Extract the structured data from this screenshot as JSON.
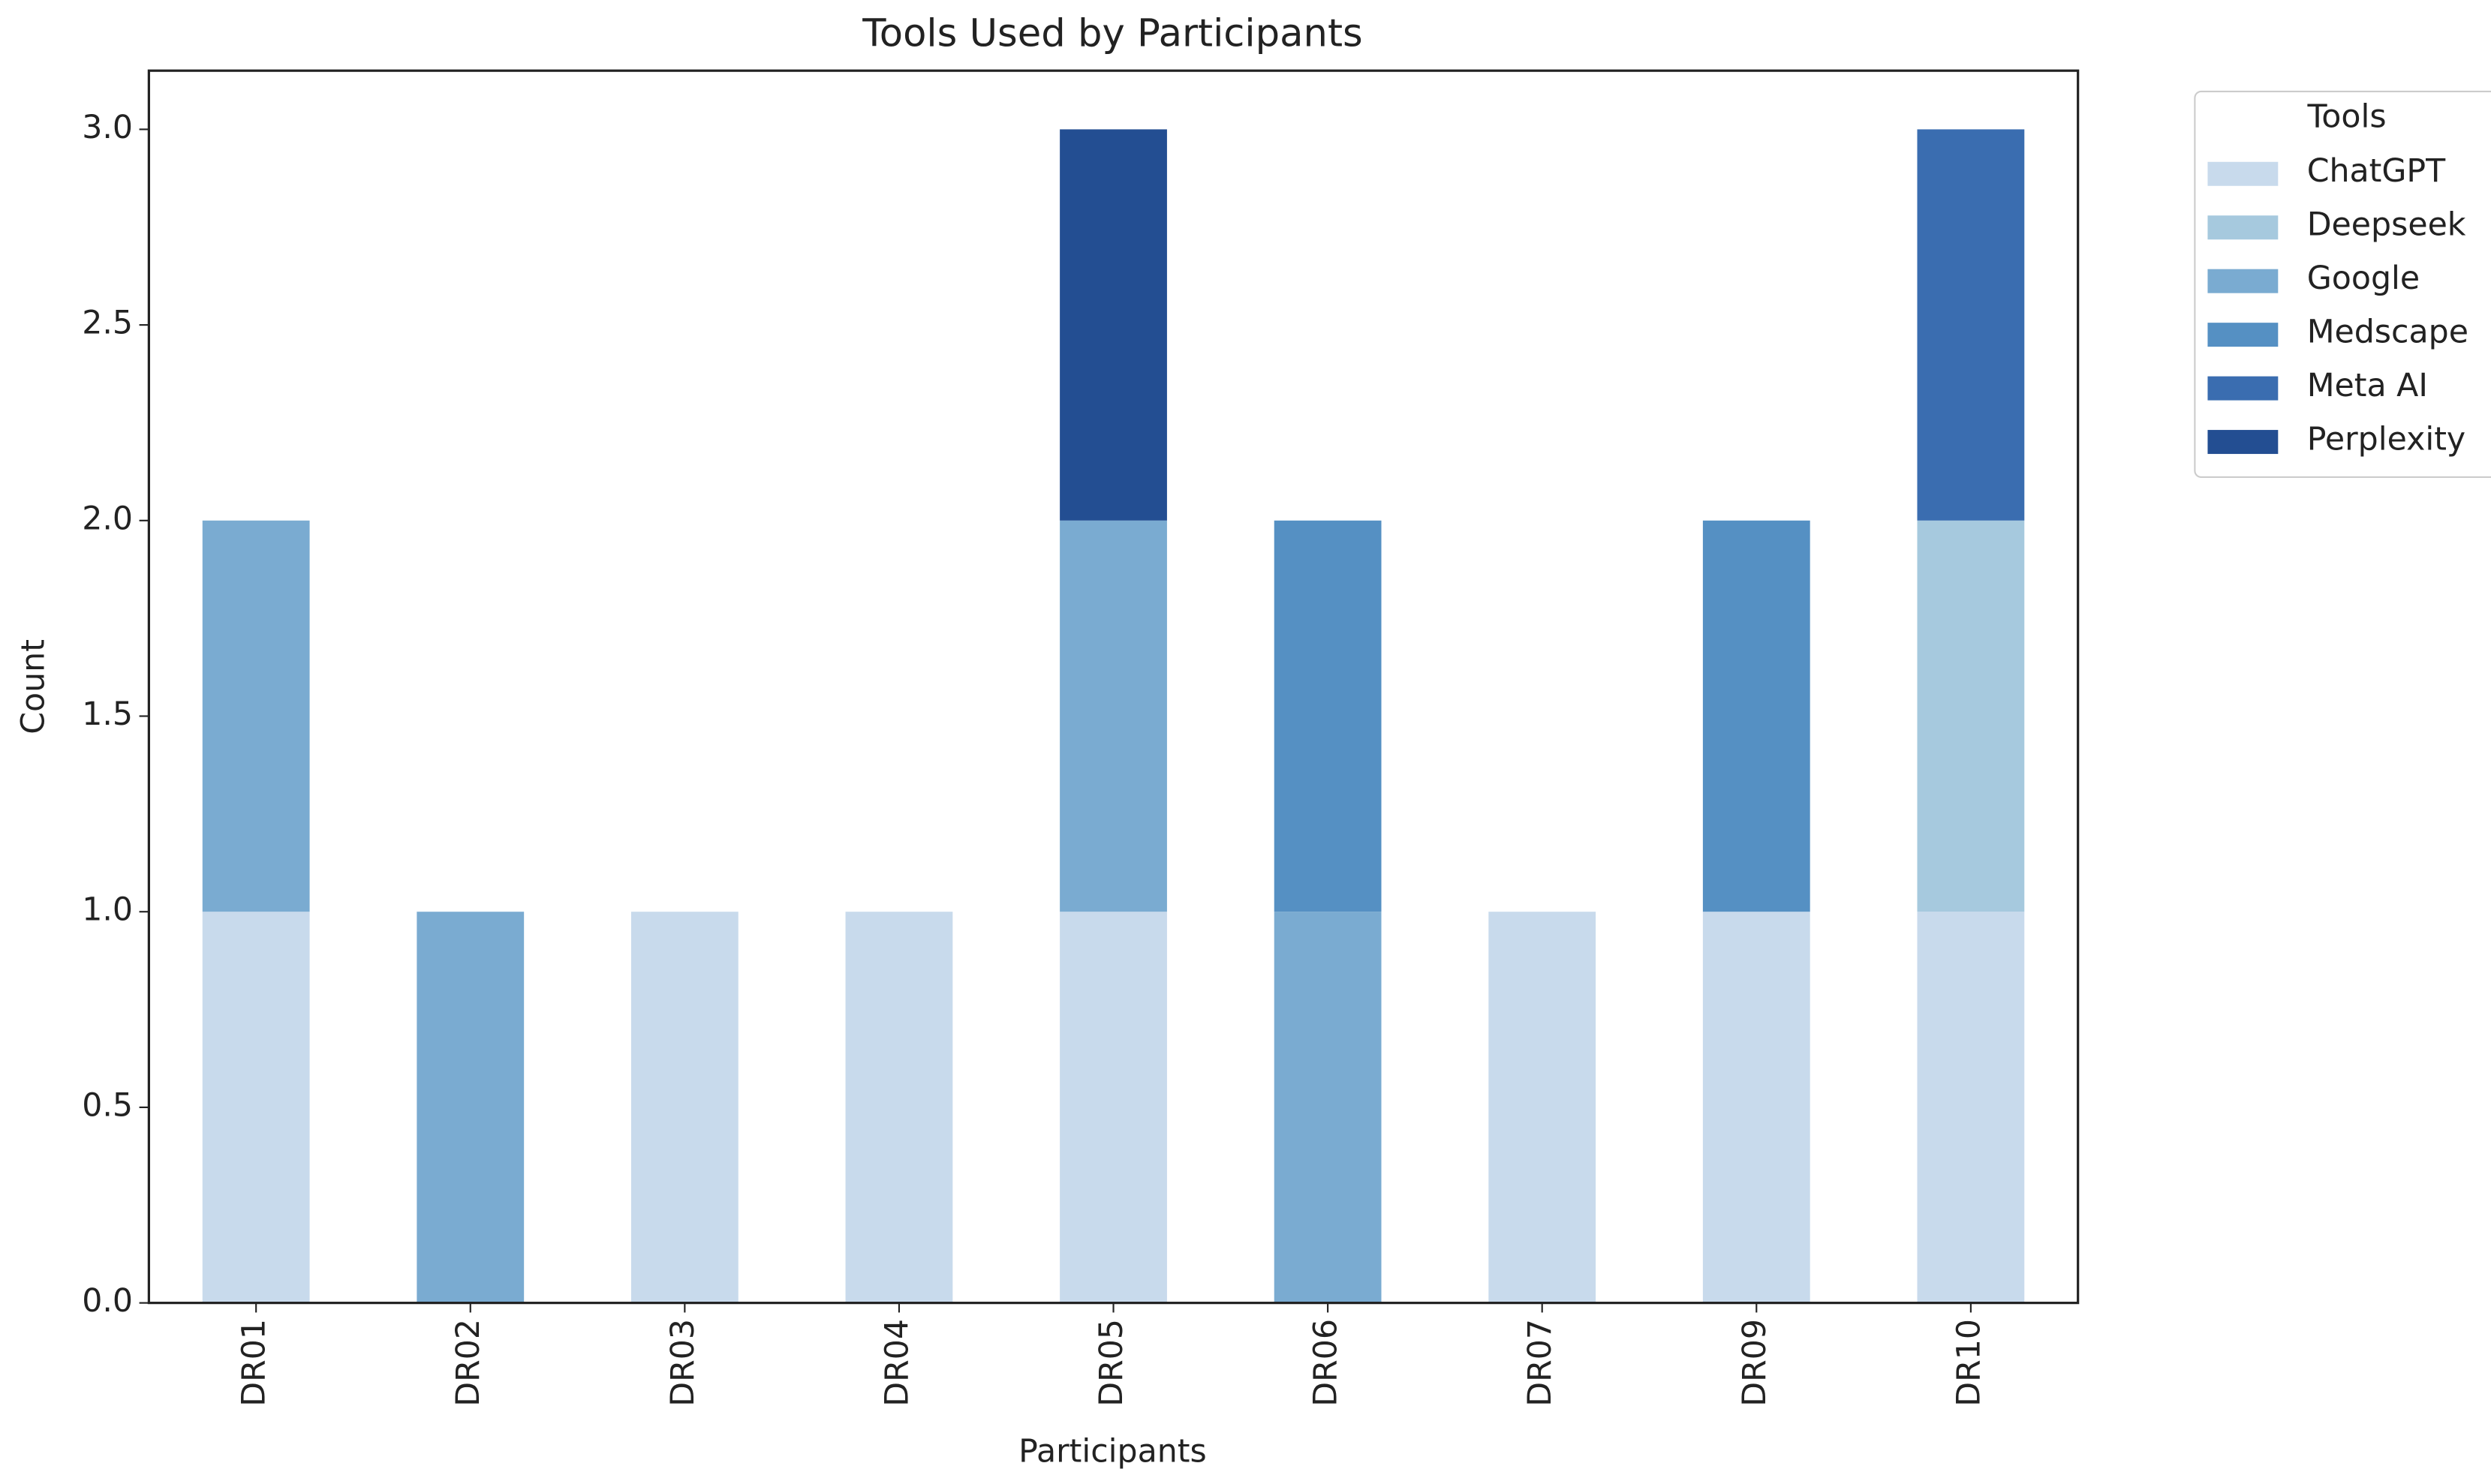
{
  "chart_data": {
    "type": "stacked_bar",
    "title": "Tools Used by Participants",
    "x_label": "Participants",
    "y_label": "Count",
    "categories": [
      "DR01",
      "DR02",
      "DR03",
      "DR04",
      "DR05",
      "DR06",
      "DR07",
      "DR09",
      "DR10"
    ],
    "series": [
      {
        "name": "ChatGPT",
        "color": "#c8daec",
        "values": [
          1,
          0,
          1,
          1,
          1,
          0,
          1,
          1,
          1
        ]
      },
      {
        "name": "Deepseek",
        "color": "#a6c9de",
        "values": [
          0,
          0,
          0,
          0,
          0,
          0,
          0,
          0,
          1
        ]
      },
      {
        "name": "Google",
        "color": "#7aabd1",
        "values": [
          1,
          1,
          0,
          0,
          1,
          1,
          0,
          0,
          0
        ]
      },
      {
        "name": "Medscape",
        "color": "#5590c3",
        "values": [
          0,
          0,
          0,
          0,
          0,
          1,
          0,
          1,
          0
        ]
      },
      {
        "name": "Meta AI",
        "color": "#3a6db0",
        "values": [
          0,
          0,
          0,
          0,
          0,
          0,
          0,
          0,
          1
        ]
      },
      {
        "name": "Perplexity",
        "color": "#234e92",
        "values": [
          0,
          0,
          0,
          0,
          1,
          0,
          0,
          0,
          0
        ]
      }
    ],
    "ylim": [
      0,
      3.15
    ],
    "yticks": [
      {
        "value": 0,
        "label": "0.0"
      },
      {
        "value": 0.5,
        "label": "0.5"
      },
      {
        "value": 1,
        "label": "1.0"
      },
      {
        "value": 1.5,
        "label": "1.5"
      },
      {
        "value": 2,
        "label": "2.0"
      },
      {
        "value": 2.5,
        "label": "2.5"
      },
      {
        "value": 3,
        "label": "3.0"
      }
    ],
    "legend_title": "Tools",
    "legend": "outside-upper-right",
    "grid": false
  }
}
